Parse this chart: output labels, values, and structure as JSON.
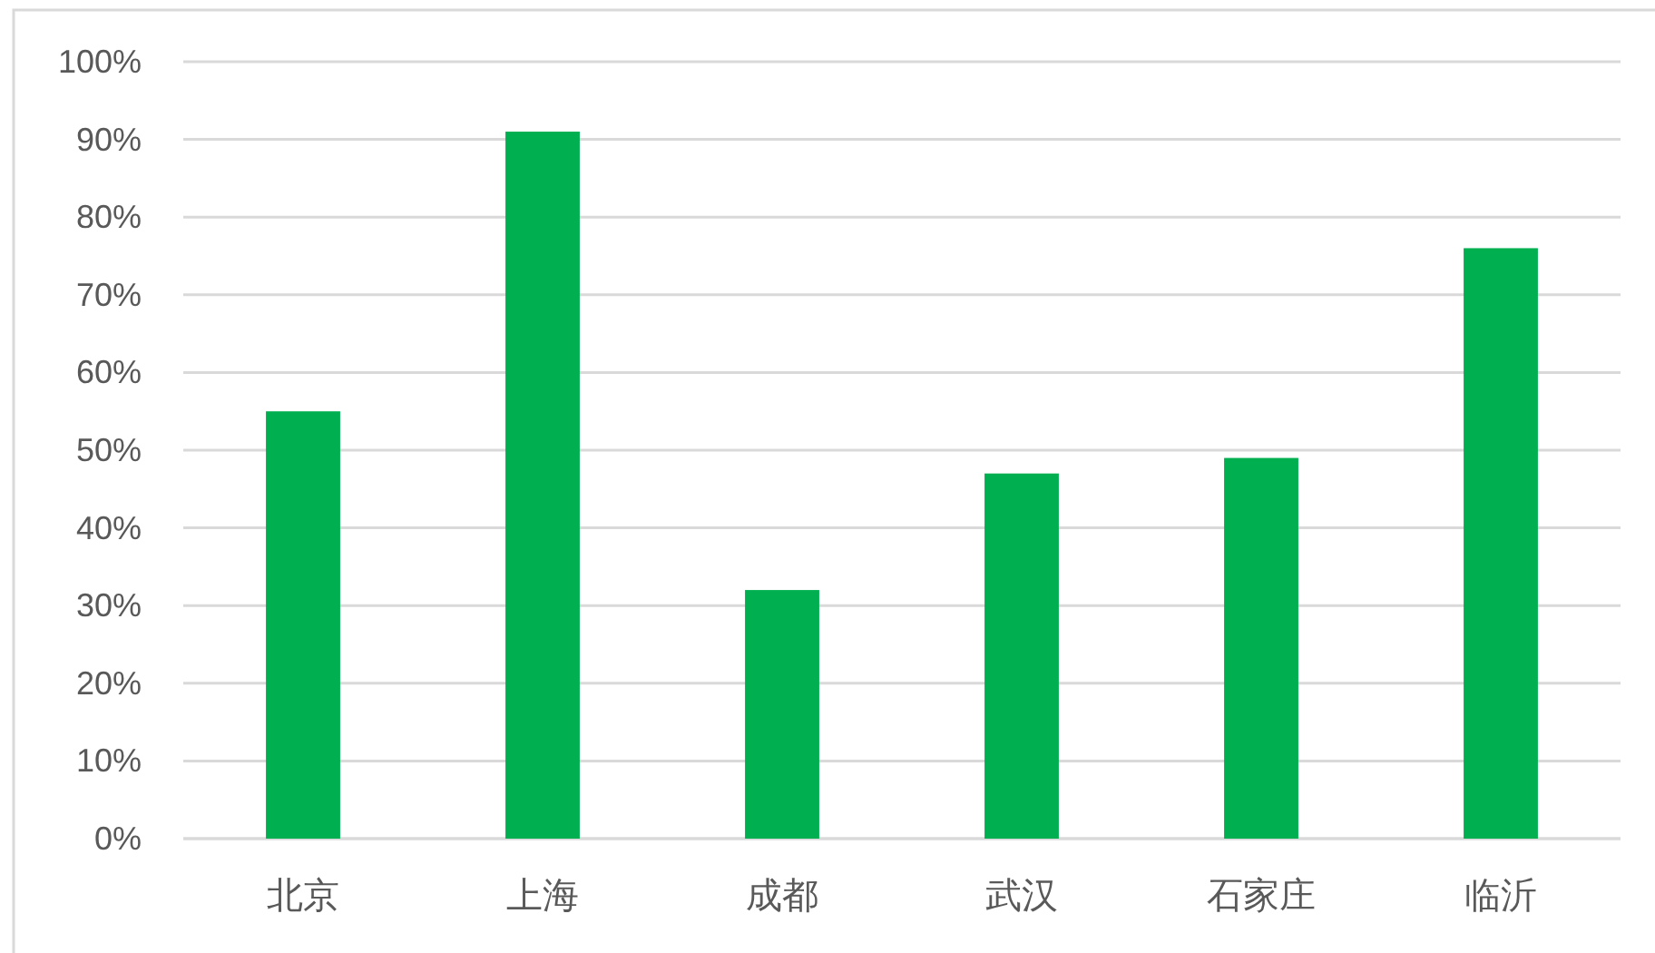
{
  "chart_data": {
    "type": "bar",
    "categories": [
      "北京",
      "上海",
      "成都",
      "武汉",
      "石家庄",
      "临沂"
    ],
    "values": [
      55,
      91,
      32,
      47,
      49,
      76
    ],
    "color": "#00b050",
    "ylim": [
      0,
      100
    ],
    "yticks": [
      {
        "value": 0,
        "label": "0%"
      },
      {
        "value": 10,
        "label": "10%"
      },
      {
        "value": 20,
        "label": "20%"
      },
      {
        "value": 30,
        "label": "30%"
      },
      {
        "value": 40,
        "label": "40%"
      },
      {
        "value": 50,
        "label": "50%"
      },
      {
        "value": 60,
        "label": "60%"
      },
      {
        "value": 70,
        "label": "70%"
      },
      {
        "value": 80,
        "label": "80%"
      },
      {
        "value": 90,
        "label": "90%"
      },
      {
        "value": 100,
        "label": "100%"
      }
    ],
    "grid": "y"
  }
}
